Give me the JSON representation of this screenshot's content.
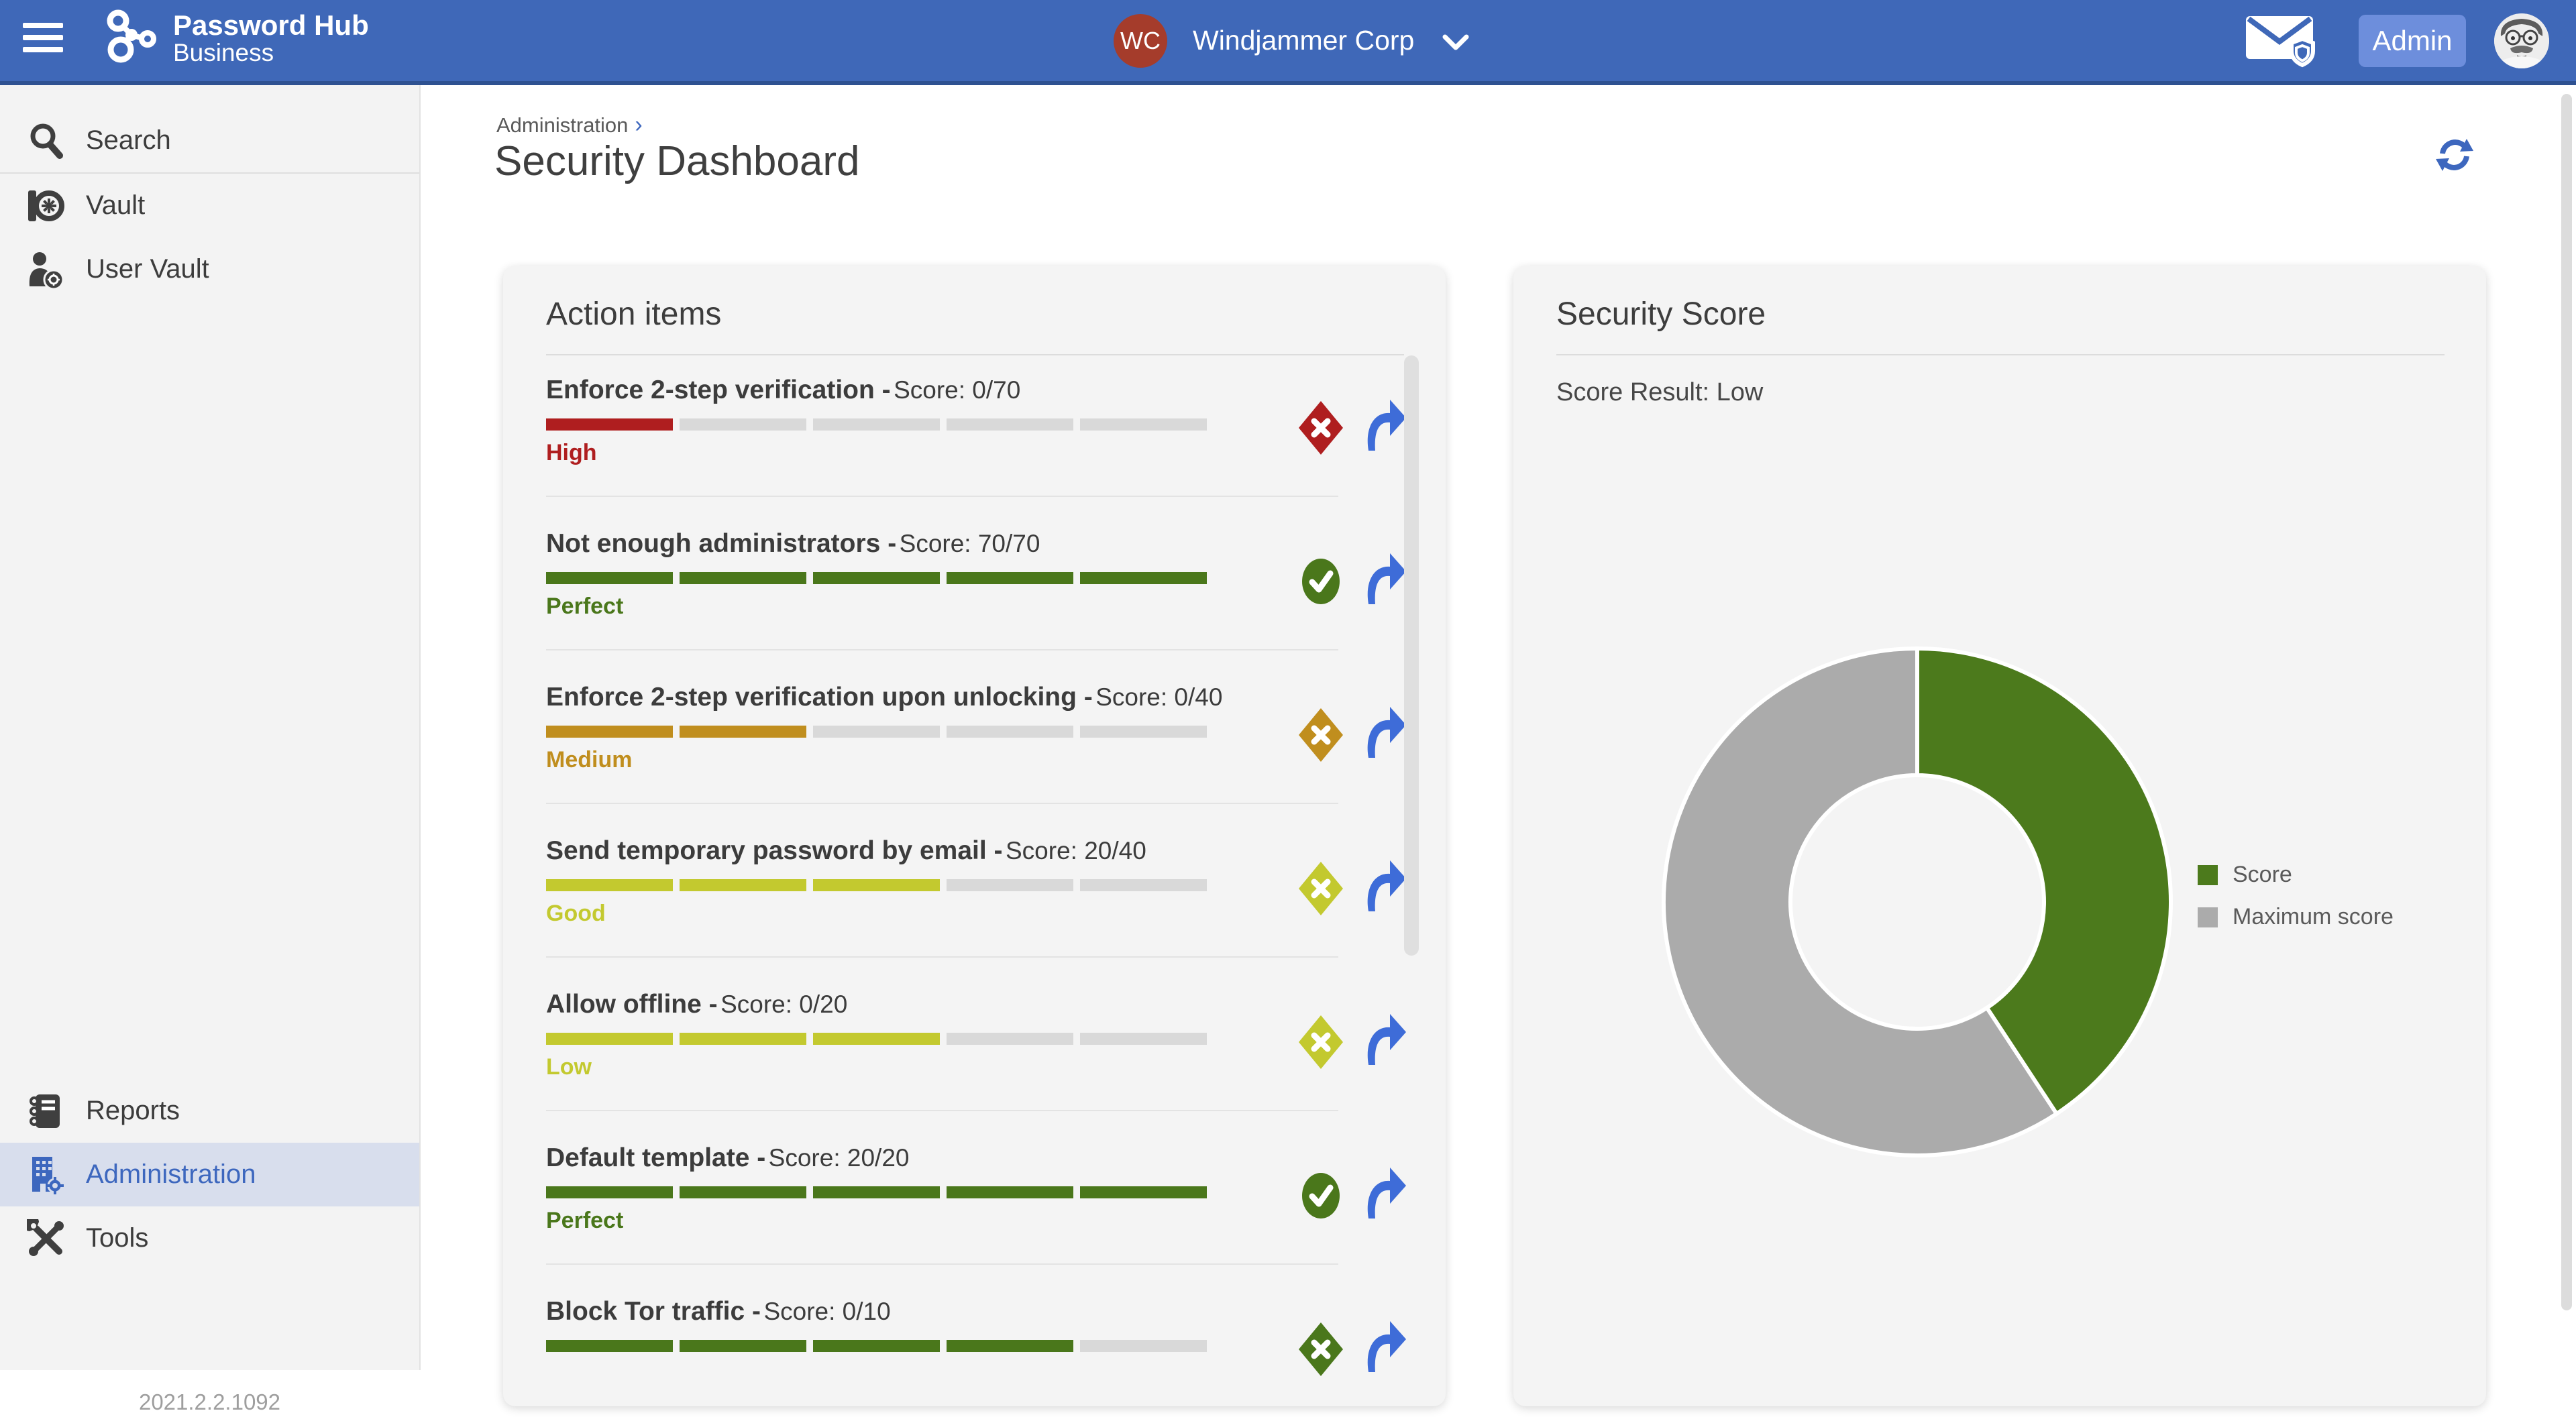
{
  "header": {
    "brand_line1": "Password Hub",
    "brand_line2": "Business",
    "org": {
      "initials": "WC",
      "name": "Windjammer Corp"
    },
    "admin_label": "Admin"
  },
  "sidebar": {
    "items": [
      {
        "label": "Search",
        "icon": "search-icon"
      },
      {
        "label": "Vault",
        "icon": "vault-icon"
      },
      {
        "label": "User Vault",
        "icon": "user-vault-icon"
      }
    ],
    "bottom_items": [
      {
        "label": "Reports",
        "icon": "reports-icon",
        "active": false
      },
      {
        "label": "Administration",
        "icon": "administration-icon",
        "active": true
      },
      {
        "label": "Tools",
        "icon": "tools-icon",
        "active": false
      }
    ],
    "version": "2021.2.2.1092"
  },
  "breadcrumb": {
    "section": "Administration",
    "separator": "›"
  },
  "page": {
    "title": "Security Dashboard"
  },
  "action_items": {
    "heading": "Action items",
    "items": [
      {
        "title": "Enforce 2-step verification -",
        "score_text": "Score: 0/70",
        "severity": "High",
        "severity_color": "#AF1E1F",
        "bar_color": "#AF1E1F",
        "filled_segments": 1,
        "total_segments": 5,
        "status": "fail",
        "status_color": "#AF1E1F"
      },
      {
        "title": "Not enough administrators -",
        "score_text": "Score: 70/70",
        "severity": "Perfect",
        "severity_color": "#4A771B",
        "bar_color": "#4A771B",
        "filled_segments": 5,
        "total_segments": 5,
        "status": "pass",
        "status_color": "#4A771B"
      },
      {
        "title": "Enforce 2-step verification upon unlocking -",
        "score_text": "Score: 0/40",
        "severity": "Medium",
        "severity_color": "#C08E1E",
        "bar_color": "#C08E1E",
        "filled_segments": 2,
        "total_segments": 5,
        "status": "fail",
        "status_color": "#C08E1E"
      },
      {
        "title": "Send temporary password by email -",
        "score_text": "Score: 20/40",
        "severity": "Good",
        "severity_color": "#C3C92F",
        "bar_color": "#C3C92F",
        "filled_segments": 3,
        "total_segments": 5,
        "status": "fail",
        "status_color": "#C3C92F"
      },
      {
        "title": "Allow offline -",
        "score_text": "Score: 0/20",
        "severity": "Low",
        "severity_color": "#C3C92F",
        "bar_color": "#C3C92F",
        "filled_segments": 3,
        "total_segments": 5,
        "status": "fail",
        "status_color": "#C3C92F"
      },
      {
        "title": "Default template -",
        "score_text": "Score: 20/20",
        "severity": "Perfect",
        "severity_color": "#4A771B",
        "bar_color": "#4A771B",
        "filled_segments": 5,
        "total_segments": 5,
        "status": "pass",
        "status_color": "#4A771B"
      },
      {
        "title": "Block Tor traffic -",
        "score_text": "Score: 0/10",
        "bar_color": "#4A771B",
        "filled_segments": 4,
        "total_segments": 5,
        "status": "fail",
        "status_color": "#4A771B"
      }
    ],
    "empty_segment_color": "#D9D9D9"
  },
  "security_score": {
    "heading": "Security Score",
    "result_text": "Score Result: Low"
  },
  "chart_data": {
    "type": "pie",
    "subtype": "donut",
    "title": "Security Score",
    "segments": [
      {
        "label": "Score",
        "value": 110,
        "color": "#4C7A1C"
      },
      {
        "label": "Maximum score",
        "value": 160,
        "color": "#ABABAB"
      }
    ],
    "total": 270,
    "start_angle_deg": 0,
    "clockwise": true,
    "hole_ratio": 0.5,
    "legend_position": "right",
    "separator_color": "#FFFFFF"
  },
  "colors": {
    "header_bg": "#3F68B8",
    "header_border": "#2E5191",
    "admin_btn_bg": "#6D8EDC",
    "org_avatar_bg": "#A53C2B",
    "sidebar_bg": "#F3F3F3",
    "sidebar_active_bg": "#D8DEED",
    "accent_blue": "#3D67BE",
    "card_bg": "#F4F4F4",
    "share_arrow_blue": "#3E6CD8"
  }
}
